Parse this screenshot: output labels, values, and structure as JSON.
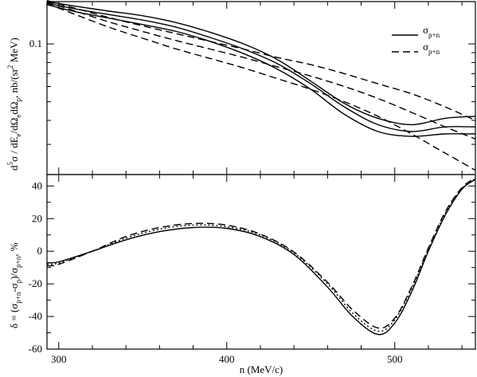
{
  "chart_data": [
    {
      "panel": "top",
      "type": "line",
      "xlim": [
        293,
        548
      ],
      "ylim_log10": [
        -1.68,
        -0.78
      ],
      "scale_y": "log",
      "xticks": [],
      "yticks": [
        {
          "value": 0.1,
          "label": "0.1"
        }
      ],
      "ylabel_parts": {
        "d5": "d",
        "sup5": "5",
        "sigma_de": "σ / dE",
        "sub_e": "e",
        "slash": "/dΩ",
        "sub_e2": "e",
        "domega_p": "dΩ",
        "sub_p": "p",
        "units": ", nb/(sr",
        "sup2": "2",
        "units_end": " MeV)"
      },
      "legend": {
        "placement": "top-right",
        "entries": [
          {
            "symbol": "σ",
            "sub": "p+n",
            "style": "solid"
          },
          {
            "symbol": "σ",
            "sub": "p+n",
            "style": "dashed"
          }
        ]
      },
      "series": [
        {
          "style": "solid",
          "x": [
            293,
            310,
            330,
            350,
            370,
            390,
            410,
            430,
            450,
            470,
            490,
            510,
            530,
            548
          ],
          "y": [
            0.166,
            0.157,
            0.148,
            0.14,
            0.129,
            0.115,
            0.1,
            0.083,
            0.064,
            0.049,
            0.041,
            0.038,
            0.041,
            0.042
          ]
        },
        {
          "style": "solid",
          "x": [
            293,
            310,
            330,
            350,
            370,
            390,
            410,
            430,
            450,
            470,
            490,
            510,
            530,
            548
          ],
          "y": [
            0.163,
            0.152,
            0.142,
            0.133,
            0.122,
            0.108,
            0.094,
            0.079,
            0.062,
            0.047,
            0.038,
            0.035,
            0.037,
            0.037
          ]
        },
        {
          "style": "solid",
          "x": [
            293,
            310,
            330,
            350,
            370,
            390,
            410,
            430,
            450,
            470,
            490,
            510,
            530,
            548
          ],
          "y": [
            0.16,
            0.147,
            0.136,
            0.126,
            0.116,
            0.103,
            0.089,
            0.074,
            0.058,
            0.043,
            0.035,
            0.033,
            0.034,
            0.034
          ]
        },
        {
          "style": "dashed",
          "x": [
            293,
            310,
            330,
            350,
            370,
            390,
            410,
            430,
            450,
            470,
            490,
            510,
            530,
            548
          ],
          "y": [
            0.168,
            0.153,
            0.137,
            0.124,
            0.113,
            0.103,
            0.094,
            0.085,
            0.078,
            0.07,
            0.062,
            0.055,
            0.047,
            0.04
          ]
        },
        {
          "style": "dashed",
          "x": [
            293,
            310,
            330,
            350,
            370,
            390,
            410,
            430,
            450,
            470,
            490,
            510,
            530,
            548
          ],
          "y": [
            0.165,
            0.148,
            0.13,
            0.116,
            0.104,
            0.094,
            0.085,
            0.076,
            0.068,
            0.06,
            0.052,
            0.044,
            0.037,
            0.032
          ]
        },
        {
          "style": "dashed",
          "x": [
            293,
            310,
            330,
            350,
            370,
            390,
            410,
            430,
            450,
            470,
            490,
            510,
            530,
            548
          ],
          "y": [
            0.162,
            0.142,
            0.122,
            0.107,
            0.094,
            0.084,
            0.075,
            0.066,
            0.058,
            0.05,
            0.042,
            0.034,
            0.027,
            0.022
          ]
        }
      ]
    },
    {
      "panel": "bottom",
      "type": "line",
      "xlim": [
        293,
        548
      ],
      "ylim": [
        -60,
        47
      ],
      "xticks": [
        300,
        400,
        500
      ],
      "yticks": [
        -60,
        -40,
        -20,
        0,
        20,
        40
      ],
      "xlabel": "n  (MeV/c)",
      "ylabel_parts": {
        "lead": "δ = (σ",
        "sub1": "p+n",
        "mid": "-σ",
        "sub2": "p",
        "mid2": ")/σ",
        "sub3": "p+n",
        "tail": ", %"
      },
      "series": [
        {
          "style": "solid",
          "x": [
            293,
            300,
            320,
            340,
            360,
            380,
            400,
            420,
            440,
            460,
            475,
            490,
            500,
            510,
            520,
            530,
            540,
            548
          ],
          "y": [
            -7,
            -6.5,
            0,
            7,
            12,
            14.5,
            14,
            9,
            -2,
            -22,
            -40,
            -51,
            -44,
            -25,
            0,
            22,
            38,
            44
          ]
        },
        {
          "style": "dashed",
          "x": [
            293,
            300,
            320,
            340,
            360,
            380,
            400,
            420,
            440,
            460,
            475,
            490,
            500,
            510,
            520,
            530,
            540,
            548
          ],
          "y": [
            -9,
            -8,
            0,
            9,
            14.5,
            17,
            16,
            10.5,
            -0.5,
            -19,
            -36,
            -47,
            -41,
            -22,
            2,
            24,
            39,
            45
          ]
        },
        {
          "style": "dotted",
          "x": [
            293,
            300,
            320,
            340,
            360,
            380,
            400,
            420,
            440,
            460,
            475,
            490,
            500,
            510,
            520,
            530,
            540,
            548
          ],
          "y": [
            -8,
            -7.2,
            0,
            8,
            13.5,
            16,
            15,
            10,
            -1,
            -20,
            -38,
            -49,
            -42,
            -23,
            1,
            23,
            38.5,
            44.5
          ]
        }
      ]
    }
  ]
}
